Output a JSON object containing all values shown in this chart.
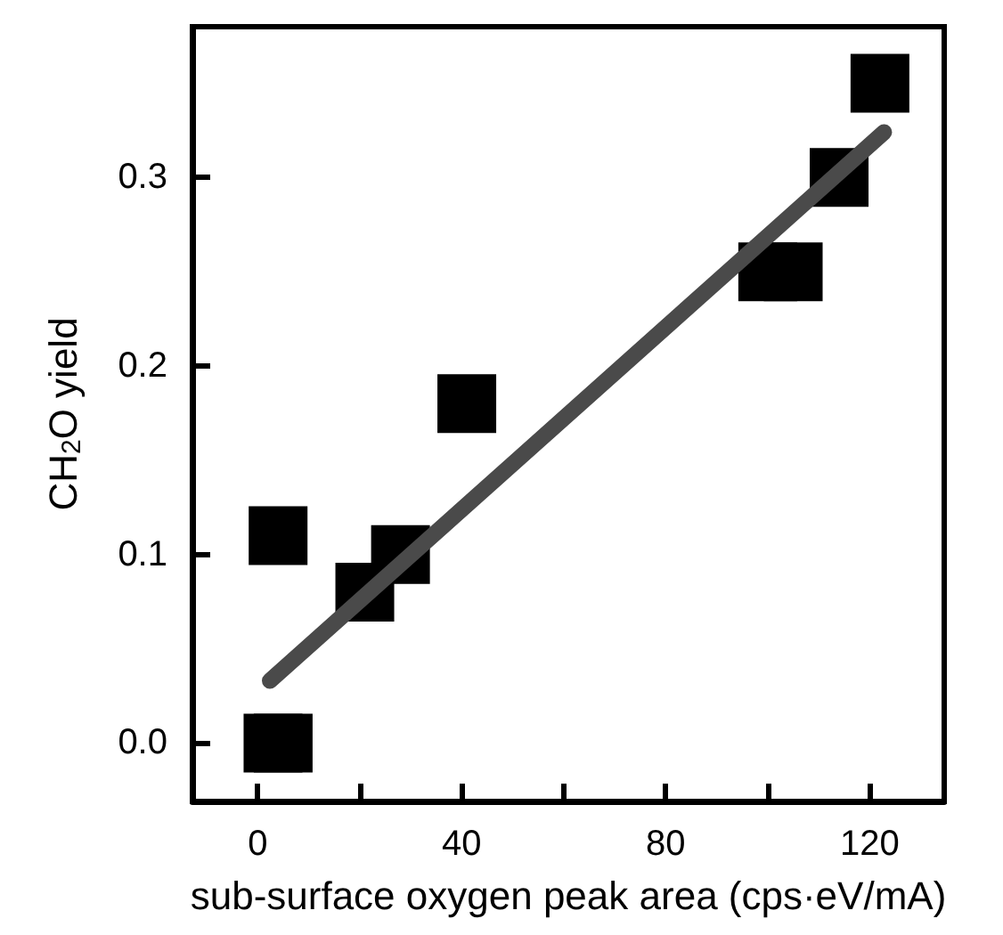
{
  "chart_data": {
    "type": "scatter",
    "xlabel": "sub-surface oxygen peak area (cps·eV/mA)",
    "ylabel": "CH$_{2}$O yield",
    "xlim": [
      -12.8,
      134.6
    ],
    "ylim": [
      -0.031,
      0.38
    ],
    "xticks": [
      0,
      {
        "value": 20,
        "label": null
      },
      40,
      {
        "value": 60,
        "label": null
      },
      80,
      {
        "value": 100,
        "label": null
      },
      120
    ],
    "yticks": [
      {
        "value": 0,
        "label": "0.0"
      },
      {
        "value": 0.1,
        "label": "0.1"
      },
      {
        "value": 0.2,
        "label": "0.2"
      },
      {
        "value": 0.3,
        "label": "0.3"
      }
    ],
    "grid": false,
    "series": [
      {
        "marker": "square",
        "color": "#000000",
        "x": [
          3,
          5,
          4,
          21,
          28,
          41,
          100,
          105,
          114,
          122
        ],
        "values": [
          0,
          0,
          0.11,
          0.08,
          0.1,
          0.18,
          0.25,
          0.25,
          0.3,
          0.35
        ]
      },
      {
        "type": "line",
        "marker": "none",
        "line_style": "solid",
        "color": "#4a4a4a",
        "x": [
          2.4,
          122.8
        ],
        "values": [
          0.033,
          0.324
        ]
      }
    ]
  }
}
